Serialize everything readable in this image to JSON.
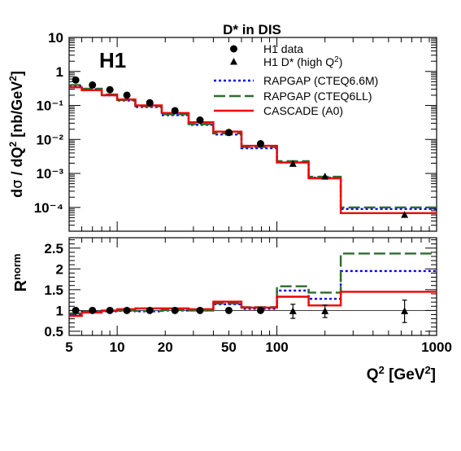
{
  "chart_data": {
    "type": "line",
    "title": "D* in DIS",
    "experiment_label": "H1",
    "xlabel": "Q² [GeV²]",
    "x_scale": "log",
    "xlim": [
      5,
      1000
    ],
    "x_ticks": [
      {
        "value": 5,
        "label": "5"
      },
      {
        "value": 10,
        "label": "10"
      },
      {
        "value": 20,
        "label": "20"
      },
      {
        "value": 50,
        "label": "50"
      },
      {
        "value": 100,
        "label": "100"
      },
      {
        "value": 1000,
        "label": "1000"
      }
    ],
    "bin_edges": [
      5,
      6,
      8,
      10,
      13,
      19,
      28,
      40,
      60,
      100,
      158,
      251,
      1000
    ],
    "top_panel": {
      "ylabel": "dσ / dQ² [nb/GeV²]",
      "y_scale": "log",
      "ylim": [
        2e-05,
        10
      ],
      "y_ticks": [
        {
          "value": 10,
          "label": "10"
        },
        {
          "value": 1,
          "label": "1"
        },
        {
          "value": 0.1,
          "label": "10⁻¹"
        },
        {
          "value": 0.01,
          "label": "10⁻²"
        },
        {
          "value": 0.001,
          "label": "10⁻³"
        },
        {
          "value": 0.0001,
          "label": "10⁻⁴"
        }
      ],
      "series": [
        {
          "name": "H1 data",
          "kind": "points",
          "marker": "circle",
          "x": [
            5.5,
            7,
            9,
            11.5,
            16,
            23,
            33,
            50,
            79
          ],
          "y": [
            0.56,
            0.4,
            0.29,
            0.2,
            0.12,
            0.07,
            0.037,
            0.016,
            0.0075
          ]
        },
        {
          "name": "H1 D* (high Q²)",
          "kind": "points",
          "marker": "triangle",
          "x": [
            126,
            200,
            630
          ],
          "y": [
            0.0019,
            0.0008,
            6e-05
          ]
        },
        {
          "name": "RAPGAP (CTEQ6.6M)",
          "kind": "step",
          "style": "dotted",
          "color": "#0000ee",
          "values": [
            0.38,
            0.3,
            0.2,
            0.14,
            0.09,
            0.052,
            0.027,
            0.014,
            0.0055,
            0.0021,
            0.00075,
            9e-05
          ]
        },
        {
          "name": "RAPGAP (CTEQ6LL)",
          "kind": "step",
          "style": "dashed",
          "color": "#2e6b2e",
          "values": [
            0.4,
            0.31,
            0.21,
            0.145,
            0.095,
            0.055,
            0.028,
            0.015,
            0.006,
            0.0023,
            0.0008,
            0.0001
          ]
        },
        {
          "name": "CASCADE (A0)",
          "kind": "step",
          "style": "solid",
          "color": "#ee0000",
          "values": [
            0.34,
            0.28,
            0.2,
            0.15,
            0.1,
            0.06,
            0.032,
            0.017,
            0.0065,
            0.0021,
            0.00072,
            6.8e-05
          ]
        }
      ]
    },
    "bottom_panel": {
      "ylabel": "R^norm",
      "y_scale": "linear",
      "ylim": [
        0.4,
        2.75
      ],
      "y_ticks": [
        {
          "value": 0.5,
          "label": "0.5"
        },
        {
          "value": 1,
          "label": "1"
        },
        {
          "value": 1.5,
          "label": "1.5"
        },
        {
          "value": 2,
          "label": "2"
        },
        {
          "value": 2.5,
          "label": "2.5"
        }
      ],
      "reference_line": 1,
      "series": [
        {
          "name": "H1 data",
          "kind": "points",
          "marker": "circle",
          "x": [
            5.5,
            7,
            9,
            11.5,
            16,
            23,
            33,
            50,
            79
          ],
          "y": [
            1,
            1,
            1,
            1,
            1,
            1,
            1,
            1,
            1
          ],
          "err": [
            0.03,
            0.03,
            0.03,
            0.03,
            0.03,
            0.03,
            0.03,
            0.03,
            0.03
          ]
        },
        {
          "name": "H1 D* (high Q²)",
          "kind": "points",
          "marker": "triangle",
          "x": [
            126,
            200,
            630
          ],
          "y": [
            0.98,
            0.98,
            0.98
          ],
          "err": [
            0.17,
            0.15,
            0.27
          ]
        },
        {
          "name": "RAPGAP (CTEQ6.6M)",
          "kind": "step",
          "style": "dotted",
          "color": "#0000ee",
          "values": [
            0.9,
            0.97,
            0.98,
            0.99,
            0.98,
            1.0,
            1.0,
            1.15,
            1.04,
            1.48,
            1.28,
            1.95
          ]
        },
        {
          "name": "RAPGAP (CTEQ6LL)",
          "kind": "step",
          "style": "dashed",
          "color": "#2e6b2e",
          "values": [
            0.93,
            0.97,
            0.99,
            1.0,
            0.99,
            1.01,
            1.0,
            1.17,
            1.08,
            1.58,
            1.43,
            2.37
          ]
        },
        {
          "name": "CASCADE (A0)",
          "kind": "step",
          "style": "solid",
          "color": "#ee0000",
          "values": [
            0.87,
            0.95,
            1.0,
            1.03,
            1.05,
            1.05,
            1.03,
            1.21,
            1.07,
            1.33,
            1.12,
            1.45
          ]
        }
      ]
    },
    "legend": {
      "placement": "top-right",
      "entries": [
        {
          "label": "H1 data",
          "marker": "circle"
        },
        {
          "label": "H1 D* (high Q²)",
          "marker": "triangle"
        },
        {
          "label": "RAPGAP (CTEQ6.6M)",
          "style": "dotted",
          "color": "#0000ee"
        },
        {
          "label": "RAPGAP (CTEQ6LL)",
          "style": "dashed",
          "color": "#2e6b2e"
        },
        {
          "label": "CASCADE (A0)",
          "style": "solid",
          "color": "#ee0000"
        }
      ]
    }
  }
}
